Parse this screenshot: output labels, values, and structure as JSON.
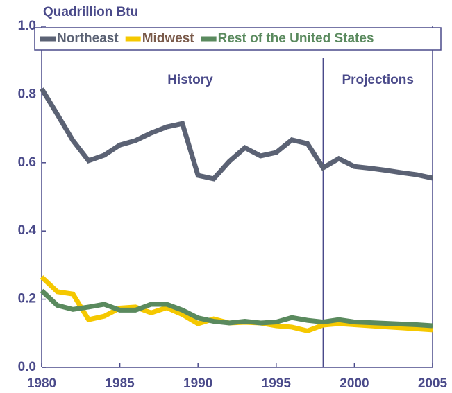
{
  "chart_data": {
    "type": "line",
    "y_axis_label": "Quadrillion Btu",
    "x": [
      1980,
      1981,
      1982,
      1983,
      1984,
      1985,
      1986,
      1987,
      1988,
      1989,
      1990,
      1991,
      1992,
      1993,
      1994,
      1995,
      1996,
      1997,
      1998,
      1999,
      2000,
      2001,
      2002,
      2003,
      2004,
      2005
    ],
    "series": [
      {
        "name": "Northeast",
        "color": "#5b6274",
        "legend_text_color": "#5b6274",
        "values": [
          0.817,
          0.742,
          0.665,
          0.606,
          0.622,
          0.652,
          0.665,
          0.687,
          0.705,
          0.715,
          0.563,
          0.553,
          0.604,
          0.644,
          0.62,
          0.63,
          0.667,
          0.656,
          0.585,
          0.612,
          0.589,
          0.584,
          0.578,
          0.571,
          0.565,
          0.555
        ]
      },
      {
        "name": "Midwest",
        "color": "#f5c800",
        "legend_text_color": "#7a5a4a",
        "values": [
          0.265,
          0.222,
          0.215,
          0.14,
          0.15,
          0.174,
          0.177,
          0.16,
          0.175,
          0.155,
          0.128,
          0.142,
          0.13,
          0.132,
          0.13,
          0.122,
          0.118,
          0.107,
          0.124,
          0.128,
          0.125,
          0.122,
          0.119,
          0.116,
          0.113,
          0.11
        ]
      },
      {
        "name": "Rest of the United States",
        "color": "#5a8a5e",
        "legend_text_color": "#5a8a5e",
        "values": [
          0.225,
          0.182,
          0.17,
          0.177,
          0.185,
          0.168,
          0.168,
          0.185,
          0.185,
          0.168,
          0.145,
          0.135,
          0.13,
          0.135,
          0.13,
          0.133,
          0.146,
          0.138,
          0.133,
          0.14,
          0.133,
          0.131,
          0.129,
          0.127,
          0.125,
          0.122
        ]
      }
    ],
    "xlim": [
      1980,
      2005
    ],
    "xticks": [
      1980,
      1985,
      1990,
      1995,
      2000,
      2005
    ],
    "ylim": [
      0,
      1
    ],
    "yticks": [
      {
        "value": 0,
        "label": "0.0"
      },
      0.2,
      0.4,
      0.6,
      0.8,
      {
        "value": 1,
        "label": "1.0"
      }
    ],
    "annotations": [
      {
        "text": "History",
        "x": 1989.5
      },
      {
        "text": "Projections",
        "x": 2001.5
      }
    ],
    "divider_x": 1998,
    "legend": "top"
  }
}
